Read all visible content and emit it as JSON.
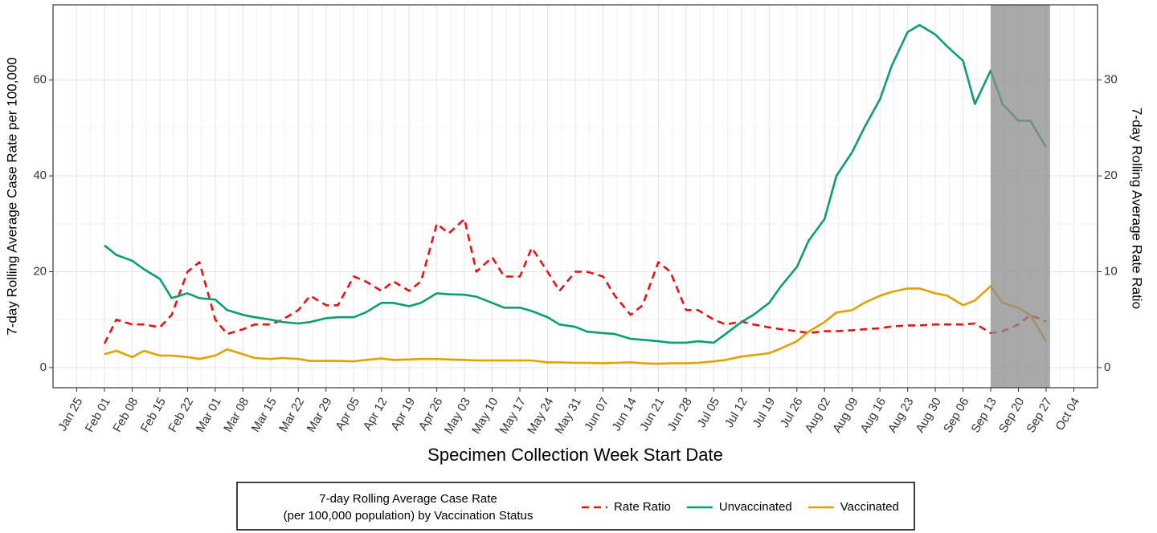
{
  "chart_data": {
    "type": "line",
    "xlabel": "Specimen Collection Week Start Date",
    "ylabel": "7-day Rolling Average Case Rate per 100,000",
    "y2label": "7-day Rolling Average Rate Ratio",
    "legend_title": [
      "7-day Rolling Average Case Rate",
      "(per 100,000 population) by Vaccination Status"
    ],
    "legend_position": "bottom",
    "grid": true,
    "shade": [
      "Sep 13",
      "Sep 28"
    ],
    "shade_color": "#8c8c8c",
    "xlim": [
      "Jan 19",
      "Oct 10"
    ],
    "xticks": [
      "Jan 25",
      "Feb 01",
      "Feb 08",
      "Feb 15",
      "Feb 22",
      "Mar 01",
      "Mar 08",
      "Mar 15",
      "Mar 22",
      "Mar 29",
      "Apr 05",
      "Apr 12",
      "Apr 19",
      "Apr 26",
      "May 03",
      "May 10",
      "May 17",
      "May 24",
      "May 31",
      "Jun 07",
      "Jun 14",
      "Jun 21",
      "Jun 28",
      "Jul 05",
      "Jul 12",
      "Jul 19",
      "Jul 26",
      "Aug 02",
      "Aug 09",
      "Aug 16",
      "Aug 23",
      "Aug 30",
      "Sep 06",
      "Sep 13",
      "Sep 20",
      "Sep 27",
      "Oct 04"
    ],
    "ylim": [
      -4.2,
      75.7
    ],
    "yticks": [
      0,
      20,
      40,
      60
    ],
    "y2lim": [
      -2.1,
      37.85
    ],
    "y2ticks": [
      0,
      10,
      20,
      30
    ],
    "x": [
      "Feb 01",
      "Feb 04",
      "Feb 08",
      "Feb 11",
      "Feb 15",
      "Feb 18",
      "Feb 22",
      "Feb 25",
      "Mar 01",
      "Mar 04",
      "Mar 08",
      "Mar 11",
      "Mar 15",
      "Mar 18",
      "Mar 22",
      "Mar 25",
      "Mar 29",
      "Apr 01",
      "Apr 05",
      "Apr 08",
      "Apr 12",
      "Apr 15",
      "Apr 19",
      "Apr 22",
      "Apr 26",
      "Apr 29",
      "May 03",
      "May 06",
      "May 10",
      "May 13",
      "May 17",
      "May 20",
      "May 24",
      "May 27",
      "May 31",
      "Jun 03",
      "Jun 07",
      "Jun 10",
      "Jun 14",
      "Jun 17",
      "Jun 21",
      "Jun 24",
      "Jun 28",
      "Jul 01",
      "Jul 05",
      "Jul 08",
      "Jul 12",
      "Jul 15",
      "Jul 19",
      "Jul 22",
      "Jul 26",
      "Jul 29",
      "Aug 02",
      "Aug 05",
      "Aug 09",
      "Aug 12",
      "Aug 16",
      "Aug 19",
      "Aug 23",
      "Aug 26",
      "Aug 30",
      "Sep 02",
      "Sep 06",
      "Sep 09",
      "Sep 13",
      "Sep 16",
      "Sep 20",
      "Sep 23",
      "Sep 27"
    ],
    "series": [
      {
        "name": "Rate Ratio",
        "color": "#ee1111",
        "dashed": true,
        "axis": "y2",
        "values": [
          2.5,
          5,
          4.5,
          4.5,
          4.2,
          5.5,
          10,
          11,
          5,
          3.5,
          4,
          4.5,
          4.5,
          5,
          6,
          7.5,
          6.5,
          6.5,
          9.5,
          9,
          8,
          9,
          8,
          9,
          15,
          14,
          15.5,
          10,
          11.5,
          9.5,
          9.5,
          12.5,
          10,
          8,
          10,
          10,
          9.5,
          7.5,
          5.5,
          6.5,
          11,
          10,
          6,
          6,
          5,
          4.5,
          4.8,
          4.5,
          4.2,
          4,
          3.8,
          3.6,
          3.8,
          3.8,
          3.9,
          4,
          4.1,
          4.3,
          4.4,
          4.4,
          4.5,
          4.5,
          4.5,
          4.6,
          3.6,
          3.8,
          4.5,
          5.5,
          4.8
        ]
      },
      {
        "name": "Unvaccinated",
        "color": "#0a9e74",
        "dashed": false,
        "values": [
          25.5,
          23.5,
          22.3,
          20.5,
          18.5,
          14.5,
          15.5,
          14.5,
          14.2,
          12,
          11,
          10.5,
          10,
          9.5,
          9.2,
          9.5,
          10.3,
          10.5,
          10.5,
          11.5,
          13.5,
          13.5,
          12.8,
          13.5,
          15.5,
          15.3,
          15.2,
          14.8,
          13.5,
          12.5,
          12.5,
          11.8,
          10.5,
          9,
          8.5,
          7.5,
          7.2,
          7,
          6,
          5.8,
          5.5,
          5.2,
          5.2,
          5.5,
          5.2,
          7,
          9.5,
          11,
          13.5,
          17,
          21,
          26.5,
          31,
          40,
          45,
          50,
          56,
          63,
          70,
          71.5,
          69.5,
          67,
          64,
          55,
          62,
          55,
          51.5,
          51.5,
          46
        ]
      },
      {
        "name": "Vaccinated",
        "color": "#e3a100",
        "dashed": false,
        "values": [
          2.8,
          3.5,
          2.2,
          3.5,
          2.5,
          2.5,
          2.2,
          1.8,
          2.5,
          3.8,
          2.8,
          2,
          1.8,
          2,
          1.8,
          1.4,
          1.4,
          1.4,
          1.3,
          1.6,
          1.9,
          1.6,
          1.7,
          1.8,
          1.8,
          1.7,
          1.6,
          1.5,
          1.5,
          1.5,
          1.5,
          1.5,
          1.1,
          1.1,
          1,
          1,
          0.9,
          1,
          1.1,
          0.9,
          0.8,
          0.9,
          0.9,
          1,
          1.3,
          1.6,
          2.3,
          2.6,
          3,
          4,
          5.5,
          7.5,
          9.5,
          11.5,
          12,
          13.5,
          15,
          15.8,
          16.5,
          16.5,
          15.5,
          15,
          13,
          14,
          17,
          13.5,
          12.5,
          11,
          5.5
        ]
      }
    ]
  }
}
